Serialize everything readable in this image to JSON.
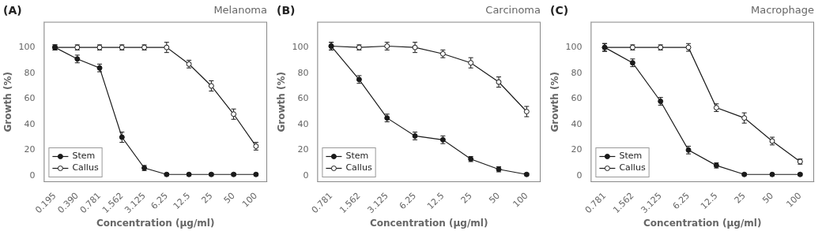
{
  "chart_data": [
    {
      "type": "line",
      "title": "Melanoma",
      "annotations": [
        "(A)"
      ],
      "xlabel": "Concentration (μg/ml)",
      "ylabel": "Growth (%)",
      "categories": [
        "0.195",
        "0.390",
        "0.781",
        "1.562",
        "3.125",
        "6.25",
        "12.5",
        "25",
        "50",
        "100"
      ],
      "series": [
        {
          "name": "Stem",
          "color": "#1a1a1a",
          "marker": "circle",
          "values": [
            100,
            91,
            84,
            30,
            6,
            1,
            1,
            1,
            1,
            1
          ],
          "errors": [
            2,
            3,
            3,
            4,
            2,
            1,
            1,
            1,
            1,
            1
          ]
        },
        {
          "name": "Callus",
          "color": "#1a1a1a",
          "marker": "open_circle",
          "values": [
            100,
            100,
            100,
            100,
            100,
            100,
            87,
            70,
            48,
            23
          ],
          "errors": [
            2,
            2,
            2,
            2,
            2,
            4,
            3,
            4,
            4,
            3
          ]
        }
      ],
      "ylim": [
        -5,
        120
      ],
      "yticks": [
        0,
        20,
        40,
        60,
        80,
        100
      ],
      "grid": false,
      "legend": "lower left"
    },
    {
      "type": "line",
      "title": "Carcinoma",
      "annotations": [
        "(B)"
      ],
      "xlabel": "Concentration (μg/ml)",
      "ylabel": "Growth (%)",
      "categories": [
        "0.781",
        "1.562",
        "3.125",
        "6.25",
        "12.5",
        "25",
        "50",
        "100"
      ],
      "series": [
        {
          "name": "Stem",
          "color": "#1a1a1a",
          "marker": "circle",
          "values": [
            101,
            75,
            45,
            31,
            28,
            13,
            5,
            1
          ],
          "errors": [
            3,
            3,
            3,
            3,
            3,
            2,
            2,
            1
          ]
        },
        {
          "name": "Callus",
          "color": "#1a1a1a",
          "marker": "open_circle",
          "values": [
            101,
            100,
            101,
            100,
            95,
            88,
            73,
            50
          ],
          "errors": [
            3,
            2,
            3,
            4,
            3,
            4,
            4,
            4
          ]
        }
      ],
      "ylim": [
        -5,
        120
      ],
      "yticks": [
        0,
        20,
        40,
        60,
        80,
        100
      ],
      "grid": false,
      "legend": "lower left"
    },
    {
      "type": "line",
      "title": "Macrophage",
      "annotations": [
        "(C)"
      ],
      "xlabel": "Concentration (μg/ml)",
      "ylabel": "Growth (%)",
      "categories": [
        "0.781",
        "1.562",
        "3.125",
        "6.25",
        "12.5",
        "25",
        "50",
        "100"
      ],
      "series": [
        {
          "name": "Stem",
          "color": "#1a1a1a",
          "marker": "circle",
          "values": [
            100,
            88,
            58,
            20,
            8,
            1,
            1,
            1
          ],
          "errors": [
            3,
            3,
            3,
            3,
            2,
            1,
            1,
            1
          ]
        },
        {
          "name": "Callus",
          "color": "#1a1a1a",
          "marker": "open_circle",
          "values": [
            100,
            100,
            100,
            100,
            53,
            45,
            27,
            11
          ],
          "errors": [
            3,
            2,
            2,
            3,
            3,
            4,
            3,
            2
          ]
        }
      ],
      "ylim": [
        -5,
        120
      ],
      "yticks": [
        0,
        20,
        40,
        60,
        80,
        100
      ],
      "grid": false,
      "legend": "lower left"
    }
  ]
}
